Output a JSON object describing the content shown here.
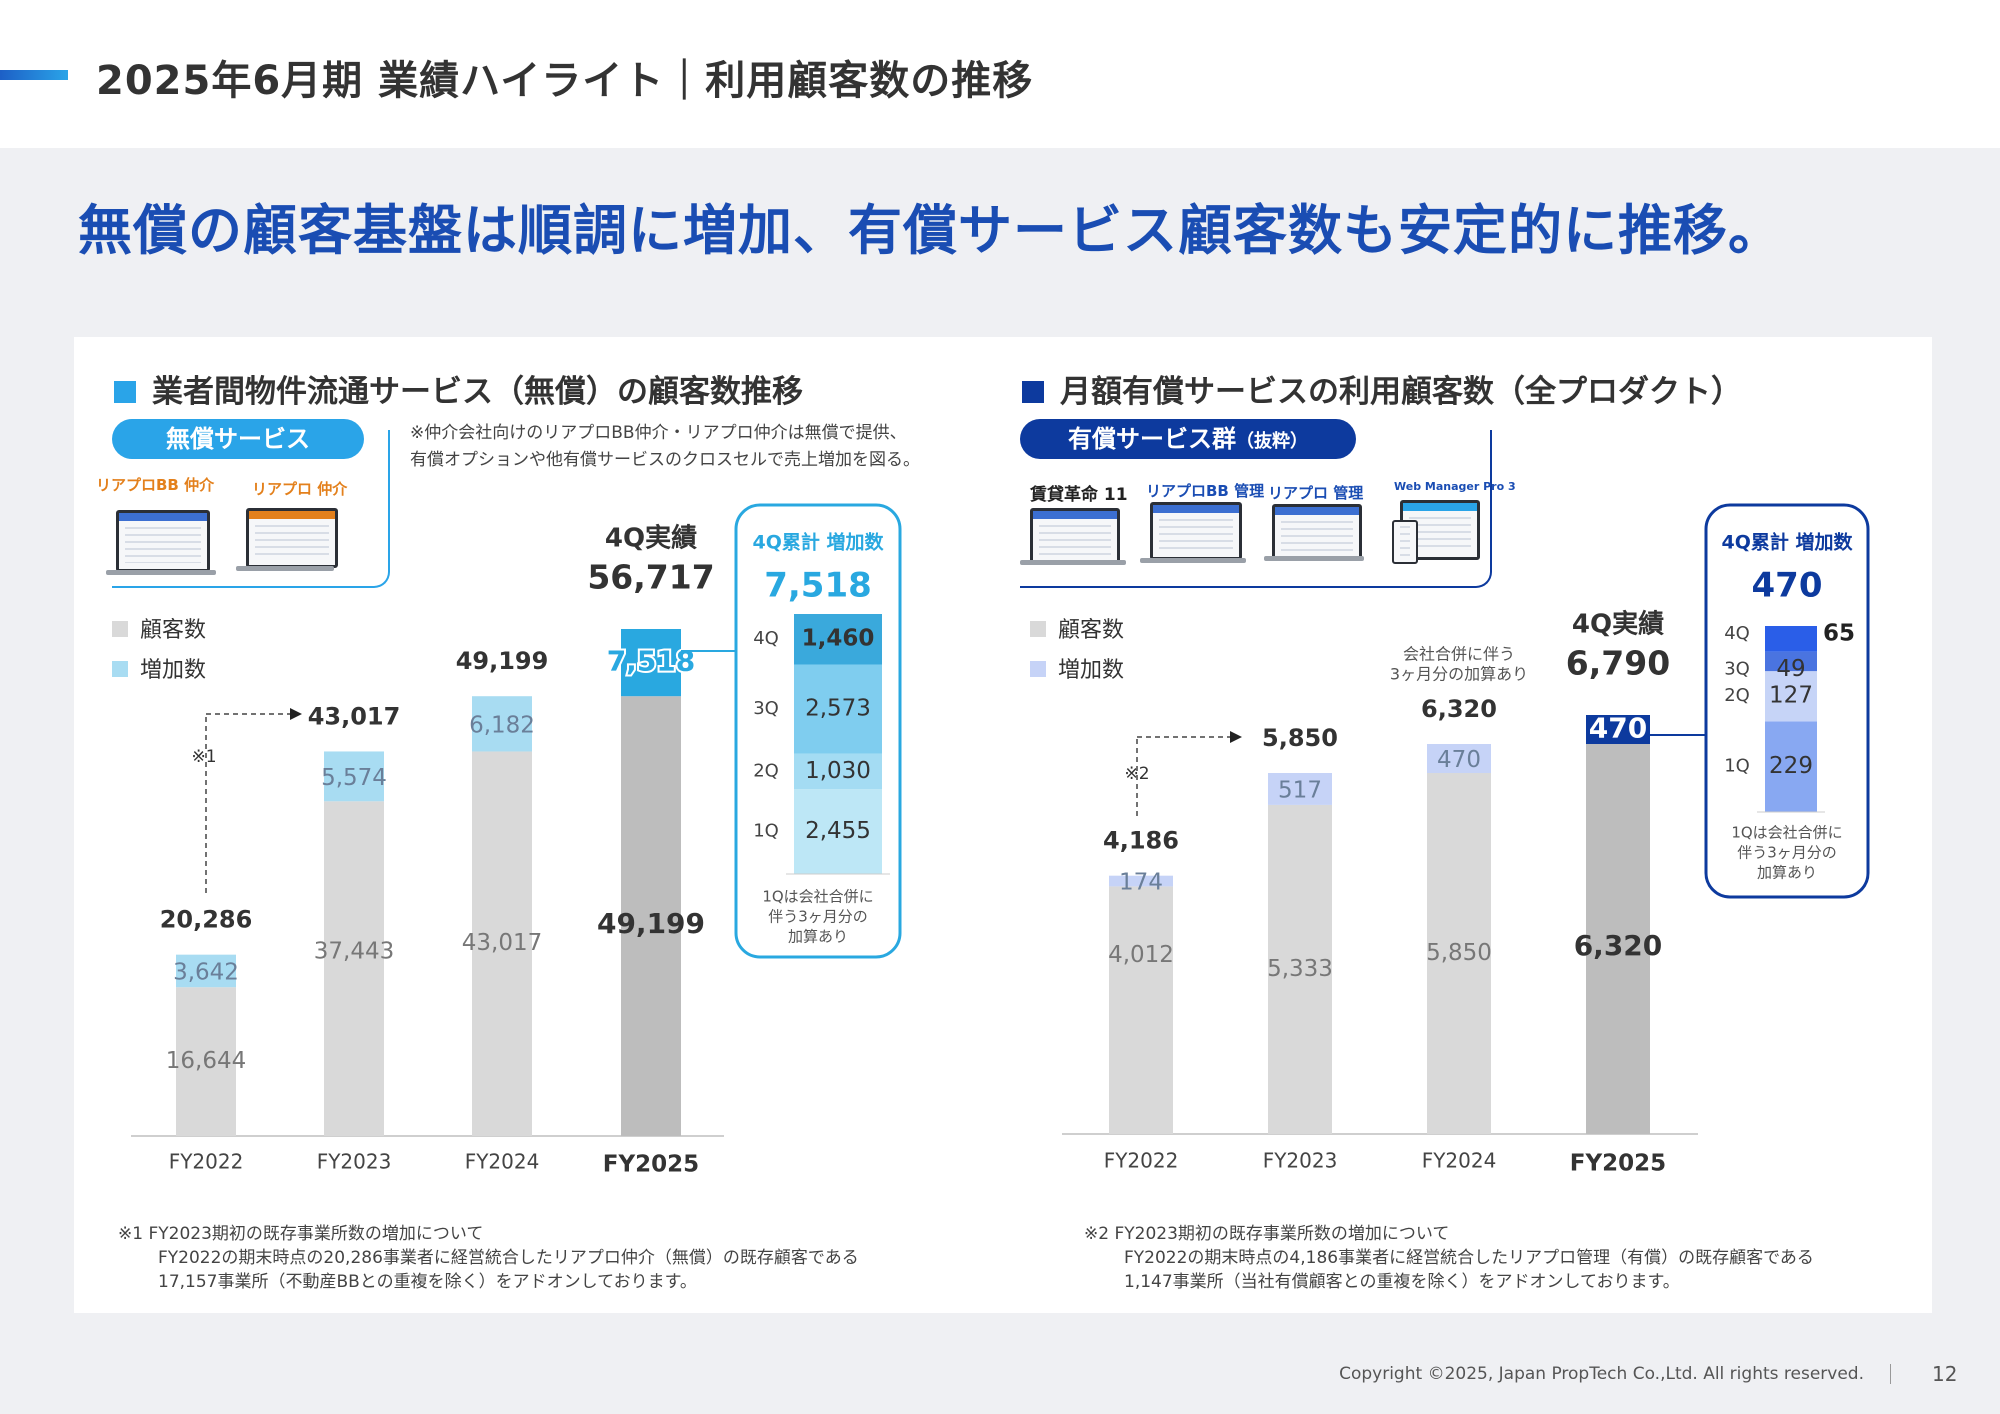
{
  "page": {
    "title": "2025年6月期 業績ハイライト｜利用顧客数の推移",
    "headline": "無償の顧客基盤は順調に増加、有償サービス顧客数も安定的に推移。",
    "copyright": "Copyright ©2025, Japan PropTech Co.,Ltd. All rights reserved.",
    "page_number": "12",
    "colors": {
      "brand_blue": "#1a4db3",
      "cyan": "#2aa4e8",
      "navy": "#0d3a9e"
    }
  },
  "left": {
    "title": "業者間物件流通サービス（無償）の顧客数推移",
    "pill": "無償サービス",
    "note_line1": "※仲介会社向けのリアプロBB仲介・リアプロ仲介は無償で提供、",
    "note_line2": "有償オプションや他有償サービスのクロスセルで売上増加を図る。",
    "product1": "リアプロBB 仲介",
    "product2": "リアプロ 仲介",
    "legend_base": "顧客数",
    "legend_inc": "増加数",
    "q4_label": "4Q実績",
    "q4_total": "56,717",
    "merge_mark": "※1",
    "box": {
      "title": "4Q累計 増加数",
      "total": "7,518",
      "note_line1": "1Qは会社合併に",
      "note_line2": "伴う3ヶ月分の",
      "note_line3": "加算あり"
    },
    "footnote_head": "※1  FY2023期初の既存事業所数の増加について",
    "footnote_line1": "FY2022の期末時点の20,286事業者に経営統合したリアプロ仲介（無償）の既存顧客である",
    "footnote_line2": "17,157事業所（不動産BBとの重複を除く）をアドオンしております。"
  },
  "right": {
    "title": "月額有償サービスの利用顧客数（全プロダクト）",
    "pill": "有償サービス群",
    "pill_sub": "（抜粋）",
    "product1": "賃貸革命 11",
    "product2": "リアプロBB 管理",
    "product3": "リアプロ 管理",
    "product4": "Web Manager Pro 3",
    "legend_base": "顧客数",
    "legend_inc": "増加数",
    "q4_label": "4Q実績",
    "q4_total": "6,790",
    "merge_mark": "※2",
    "merger_note_line1": "会社合併に伴う",
    "merger_note_line2": "3ヶ月分の加算あり",
    "box": {
      "title": "4Q累計 増加数",
      "total": "470",
      "note_line1": "1Qは会社合併に",
      "note_line2": "伴う3ヶ月分の",
      "note_line3": "加算あり"
    },
    "footnote_head": "※2  FY2023期初の既存事業所数の増加について",
    "footnote_line1": "FY2022の期末時点の4,186事業者に経営統合したリアプロ管理（有償）の既存顧客である",
    "footnote_line2": "1,147事業所（当社有償顧客との重複を除く）をアドオンしております。"
  },
  "chart_data": [
    {
      "type": "bar",
      "title": "業者間物件流通サービス（無償）の顧客数推移",
      "categories": [
        "FY2022",
        "FY2023",
        "FY2024",
        "FY2025"
      ],
      "series": [
        {
          "name": "顧客数",
          "values": [
            16644,
            37443,
            43017,
            49199
          ],
          "labels": [
            "16,644",
            "37,443",
            "43,017",
            "49,199"
          ]
        },
        {
          "name": "増加数",
          "values": [
            3642,
            5574,
            6182,
            7518
          ],
          "labels": [
            "3,642",
            "5,574",
            "6,182",
            "7,518"
          ]
        }
      ],
      "totals": [
        20286,
        43017,
        49199,
        56717
      ],
      "total_labels": [
        "20,286",
        "43,017",
        "49,199",
        "56,717"
      ],
      "quarterly_increase": {
        "quarters": [
          "1Q",
          "2Q",
          "3Q",
          "4Q"
        ],
        "values": [
          2455,
          1030,
          2573,
          1460
        ],
        "labels": [
          "2,455",
          "1,030",
          "2,573",
          "1,460"
        ],
        "colors": [
          "#bde7f6",
          "#a4dcf3",
          "#7fcdef",
          "#3aa9dc"
        ]
      },
      "colors": {
        "base": "#d9d9d9",
        "base_last": "#bdbdbd",
        "increase": "#a8dcf2",
        "increase_last": "#29a8e0"
      }
    },
    {
      "type": "bar",
      "title": "月額有償サービスの利用顧客数（全プロダクト）",
      "categories": [
        "FY2022",
        "FY2023",
        "FY2024",
        "FY2025"
      ],
      "series": [
        {
          "name": "顧客数",
          "values": [
            4012,
            5333,
            5850,
            6320
          ],
          "labels": [
            "4,012",
            "5,333",
            "5,850",
            "6,320"
          ]
        },
        {
          "name": "増加数",
          "values": [
            174,
            517,
            470,
            470
          ],
          "labels": [
            "174",
            "517",
            "470",
            "470"
          ]
        }
      ],
      "totals": [
        4186,
        5850,
        6320,
        6790
      ],
      "total_labels": [
        "4,186",
        "5,850",
        "6,320",
        "6,790"
      ],
      "quarterly_increase": {
        "quarters": [
          "1Q",
          "2Q",
          "3Q",
          "4Q"
        ],
        "values": [
          229,
          127,
          49,
          65
        ],
        "labels": [
          "229",
          "127",
          "49",
          "65"
        ],
        "colors": [
          "#88a8f2",
          "#c6d4f7",
          "#4a74e0",
          "#2a5ee8"
        ]
      },
      "colors": {
        "base": "#d9d9d9",
        "base_last": "#bdbdbd",
        "increase": "#c6d3f7",
        "increase_last": "#0d3a9e"
      }
    }
  ]
}
